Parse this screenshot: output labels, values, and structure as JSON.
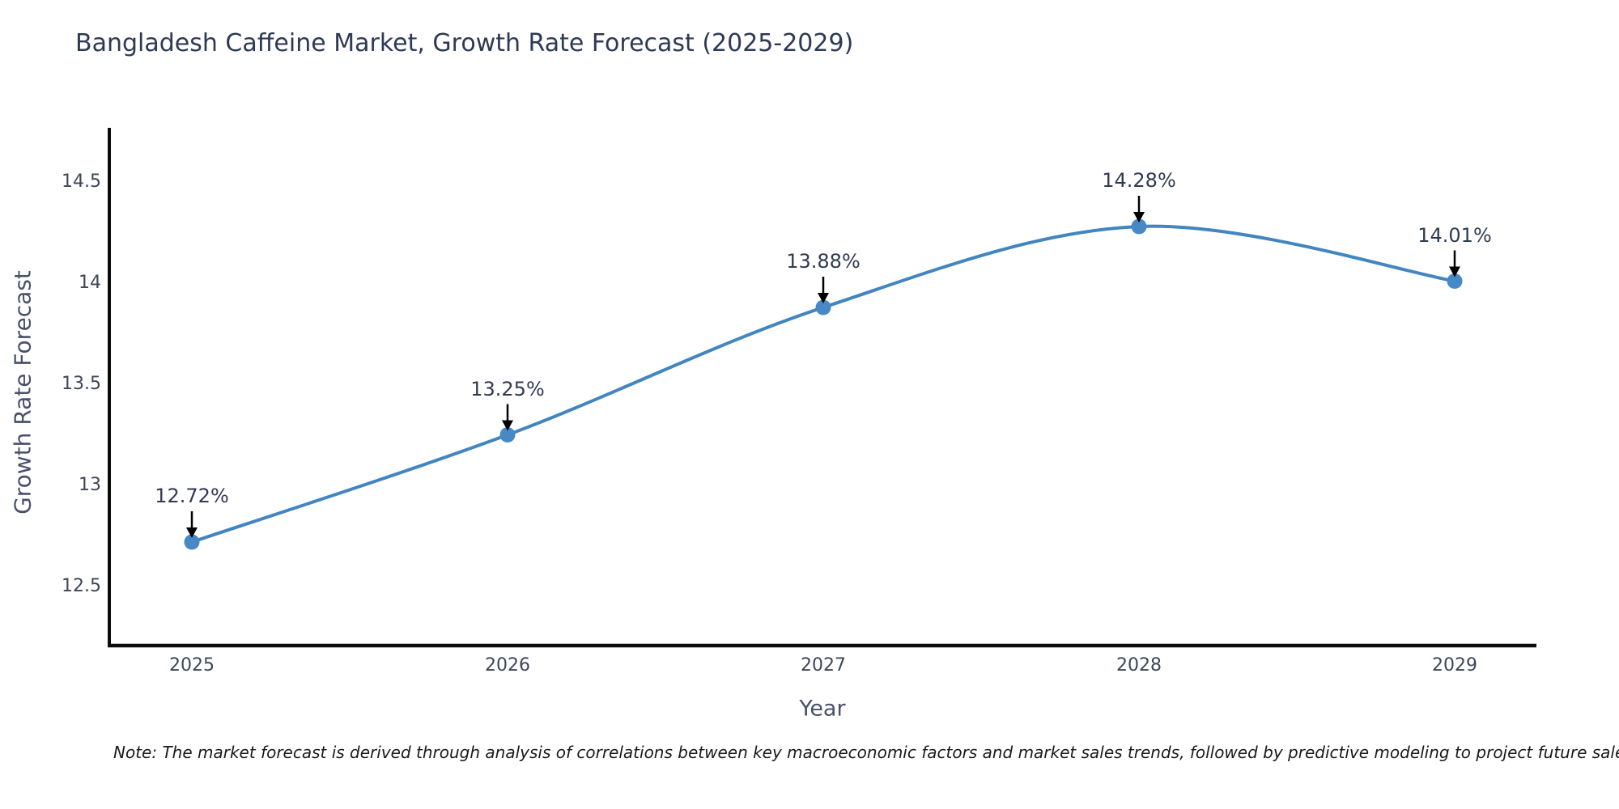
{
  "title": "Bangladesh Caffeine Market, Growth Rate Forecast (2025-2029)",
  "x_axis": {
    "label": "Year",
    "ticks": [
      "2025",
      "2026",
      "2027",
      "2028",
      "2029"
    ]
  },
  "y_axis": {
    "label": "Growth Rate Forecast",
    "ticks": [
      "12.5",
      "13",
      "13.5",
      "14",
      "14.5"
    ]
  },
  "note": "Note: The market forecast is derived through analysis of correlations between key macroeconomic factors and market sales trends, followed by predictive modeling to project future sales.",
  "colors": {
    "line": "#4285bf",
    "marker": "#4689c4",
    "axis": "#0c0c0c",
    "arrow": "#000000",
    "title_text": "#2e3a54",
    "tick_text": "#3c4758",
    "axis_label_text": "#47516a",
    "note_text": "#1a1a1a"
  },
  "chart_data": {
    "type": "line",
    "title": "Bangladesh Caffeine Market, Growth Rate Forecast (2025-2029)",
    "xlabel": "Year",
    "ylabel": "Growth Rate Forecast",
    "x": [
      2025,
      2026,
      2027,
      2028,
      2029
    ],
    "series": [
      {
        "name": "Growth Rate Forecast",
        "values": [
          12.72,
          13.25,
          13.88,
          14.28,
          14.01
        ]
      }
    ],
    "point_labels": [
      "12.72%",
      "13.25%",
      "13.88%",
      "14.28%",
      "14.01%"
    ],
    "ylim": [
      12.2,
      14.76
    ],
    "yticks": [
      12.5,
      13,
      13.5,
      14,
      14.5
    ],
    "grid": false,
    "legend": false,
    "smooth": true,
    "marker": "circle",
    "annotation_style": "value label with downward arrow at each data point"
  }
}
